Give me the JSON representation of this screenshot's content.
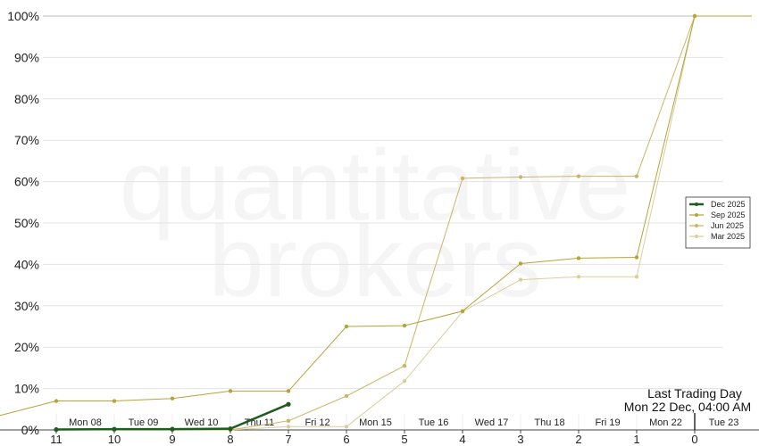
{
  "chart_data": {
    "type": "line",
    "watermark": [
      "quantitative",
      "brokers"
    ],
    "y_ticks": [
      "0%",
      "10%",
      "20%",
      "30%",
      "40%",
      "50%",
      "60%",
      "70%",
      "80%",
      "90%",
      "100%"
    ],
    "ylim": [
      0,
      100
    ],
    "x_ticks": [
      "11",
      "10",
      "9",
      "8",
      "7",
      "6",
      "5",
      "4",
      "3",
      "2",
      "1",
      "0"
    ],
    "x": [
      11,
      10,
      9,
      8,
      7,
      6,
      5,
      4,
      3,
      2,
      1,
      0
    ],
    "day_labels": [
      "Mon 08",
      "Tue 09",
      "Wed 10",
      "Thu 11",
      "Fri 12",
      "Mon 15",
      "Tue 16",
      "Wed 17",
      "Thu 18",
      "Fri 19",
      "Mon 22",
      "Tue 23"
    ],
    "annotation": {
      "line1": "Last Trading Day",
      "line2": "Mon 22 Dec, 04:00 AM"
    },
    "grid": true,
    "legend_position": "right",
    "series": [
      {
        "name": "Dec 2025",
        "color": "#1e5c1e",
        "width": 2.5,
        "x": [
          11,
          10,
          9,
          8,
          7
        ],
        "values": [
          0.1,
          0.2,
          0.2,
          0.3,
          6.2
        ]
      },
      {
        "name": "Sep 2025",
        "color": "#b8a23a",
        "width": 1,
        "x": [
          11.5,
          11,
          10,
          9,
          8,
          7,
          6,
          5,
          4,
          3,
          2,
          1,
          0,
          -1
        ],
        "values": [
          3.5,
          7,
          7,
          7.6,
          9.4,
          9.4,
          25,
          25.2,
          28.7,
          40.2,
          41.5,
          41.7,
          100,
          100
        ]
      },
      {
        "name": "Jun 2025",
        "color": "#c9b565",
        "width": 1,
        "x": [
          11,
          10,
          9,
          8,
          7,
          6,
          5,
          4,
          3,
          2,
          1,
          0
        ],
        "values": [
          0,
          0,
          0,
          0,
          2.2,
          8.2,
          15.5,
          60.8,
          61.1,
          61.3,
          61.3,
          100
        ]
      },
      {
        "name": "Mar 2025",
        "color": "#d9cf9a",
        "width": 1,
        "x": [
          11,
          10,
          9,
          8,
          7,
          6,
          5,
          4,
          3,
          2,
          1,
          0
        ],
        "values": [
          0,
          0,
          0,
          0,
          0.8,
          0.8,
          11.8,
          28.6,
          36.3,
          37,
          37,
          100
        ]
      }
    ]
  }
}
